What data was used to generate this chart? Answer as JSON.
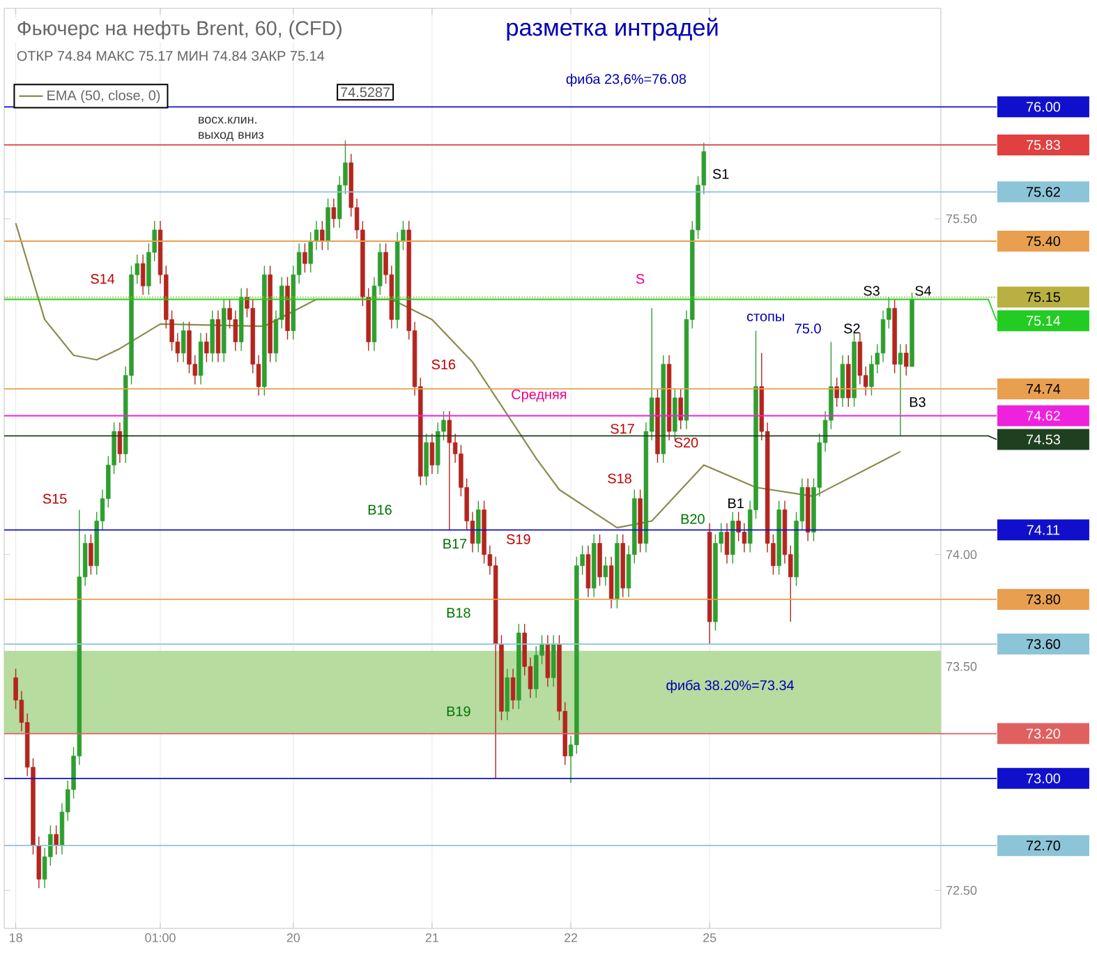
{
  "chart_data": {
    "type": "candlestick",
    "title": "Фьючерс на нефть Brent, 60, (CFD)",
    "subtitle": "ОТКР 74.84  МАКС 75.17  МИН 74.84  ЗАКР 75.14",
    "colors": [
      "#b3261e",
      "#b3261e",
      "#b3261e",
      "#b3261e",
      "#b3261e",
      "#2f9e2f",
      "#2f9e2f",
      "#b3261e",
      "#2f9e2f",
      "#2f9e2f",
      "#2f9e2f",
      "#2f9e2f",
      "#2f9e2f",
      "#b3261e",
      "#2f9e2f",
      "#2f9e2f",
      "#2f9e2f",
      "#2f9e2f",
      "#b3261e",
      "#2f9e2f",
      "#2f9e2f",
      "#2f9e2f",
      "#b3261e",
      "#2f9e2f",
      "#2f9e2f",
      "#b3261e",
      "#b3261e",
      "#b3261e",
      "#b3261e",
      "#2f9e2f",
      "#b3261e",
      "#b3261e",
      "#2f9e2f",
      "#b3261e",
      "#2f9e2f",
      "#b3261e",
      "#2f9e2f",
      "#b3261e",
      "#b3261e",
      "#2f9e2f",
      "#b3261e",
      "#b3261e",
      "#b3261e",
      "#2f9e2f",
      "#b3261e",
      "#2f9e2f",
      "#2f9e2f",
      "#b3261e",
      "#2f9e2f",
      "#2f9e2f",
      "#b3261e",
      "#2f9e2f",
      "#2f9e2f",
      "#b3261e",
      "#2f9e2f",
      "#b3261e",
      "#2f9e2f",
      "#2f9e2f",
      "#b3261e",
      "#b3261e",
      "#b3261e",
      "#b3261e",
      "#2f9e2f",
      "#2f9e2f",
      "#b3261e",
      "#b3261e",
      "#2f9e2f",
      "#2f9e2f",
      "#b3261e",
      "#b3261e",
      "#b3261e",
      "#2f9e2f",
      "#b3261e",
      "#2f9e2f",
      "#2f9e2f",
      "#b3261e",
      "#b3261e",
      "#b3261e",
      "#b3261e",
      "#b3261e",
      "#2f9e2f",
      "#b3261e",
      "#b3261e",
      "#b3261e",
      "#b3261e",
      "#2f9e2f",
      "#b3261e",
      "#2f9e2f",
      "#b3261e",
      "#b3261e",
      "#2f9e2f",
      "#2f9e2f",
      "#b3261e",
      "#2f9e2f",
      "#b3261e",
      "#b3261e",
      "#2f9e2f",
      "#2f9e2f",
      "#2f9e2f",
      "#b3261e",
      "#2f9e2f",
      "#b3261e",
      "#2f9e2f",
      "#b3261e",
      "#2f9e2f",
      "#b3261e",
      "#2f9e2f",
      "#2f9e2f",
      "#b3261e",
      "#2f9e2f",
      "#2f9e2f",
      "#b3261e",
      "#2f9e2f",
      "#b3261e",
      "#2f9e2f",
      "#b3261e",
      "#2f9e2f",
      "#2f9e2f",
      "#2f9e2f",
      "#2f9e2f",
      "#b3261e",
      "#2f9e2f",
      "#2f9e2f",
      "#b3261e",
      "#2f9e2f",
      "#b3261e",
      "#b3261e",
      "#2f9e2f",
      "#2f9e2f",
      "#b3261e",
      "#b3261e",
      "#b3261e",
      "#2f9e2f",
      "#b3261e",
      "#b3261e",
      "#2f9e2f",
      "#2f9e2f",
      "#b3261e",
      "#2f9e2f",
      "#2f9e2f",
      "#2f9e2f",
      "#2f9e2f",
      "#b3261e",
      "#2f9e2f",
      "#b3261e",
      "#2f9e2f",
      "#b3261e",
      "#b3261e",
      "#2f9e2f",
      "#2f9e2f",
      "#2f9e2f",
      "#2f9e2f",
      "#b3261e",
      "#2f9e2f",
      "#b3261e",
      "#2f9e2f"
    ],
    "categories": [
      "18",
      null,
      null,
      null,
      null,
      null,
      null,
      null,
      null,
      null,
      null,
      null,
      null,
      null,
      null,
      null,
      null,
      null,
      null,
      null,
      null,
      null,
      null,
      null,
      null,
      "01:00",
      null,
      null,
      null,
      null,
      null,
      null,
      null,
      null,
      null,
      null,
      null,
      null,
      null,
      null,
      null,
      null,
      null,
      null,
      null,
      null,
      null,
      null,
      "20",
      null,
      null,
      null,
      null,
      null,
      null,
      null,
      null,
      null,
      null,
      null,
      null,
      null,
      null,
      null,
      null,
      null,
      null,
      null,
      null,
      null,
      null,
      null,
      "21",
      null,
      null,
      null,
      null,
      null,
      null,
      null,
      null,
      null,
      null,
      null,
      null,
      null,
      null,
      null,
      null,
      null,
      null,
      null,
      null,
      null,
      null,
      null,
      "22",
      null,
      null,
      null,
      null,
      null,
      null,
      null,
      null,
      null,
      null,
      null,
      null,
      null,
      null,
      null,
      null,
      null,
      null,
      null,
      null,
      null,
      null,
      null,
      "25",
      null,
      null,
      null,
      null,
      null,
      null,
      null,
      null,
      null,
      null,
      null,
      null,
      null,
      null,
      null,
      null,
      null,
      null,
      null,
      null,
      null,
      null,
      null,
      null,
      null,
      null,
      null,
      null,
      null,
      null,
      null,
      null,
      null,
      null,
      null
    ],
    "ohlc": [
      [
        73.45,
        73.49,
        73.31,
        73.35
      ],
      [
        73.35,
        73.39,
        73.21,
        73.25
      ],
      [
        73.25,
        73.29,
        73.01,
        73.05
      ],
      [
        73.05,
        73.09,
        72.66,
        72.7
      ],
      [
        72.7,
        72.74,
        72.51,
        72.55
      ],
      [
        72.55,
        72.69,
        72.51,
        72.65
      ],
      [
        72.65,
        72.79,
        72.61,
        72.75
      ],
      [
        72.75,
        72.79,
        72.66,
        72.7
      ],
      [
        72.7,
        72.89,
        72.66,
        72.85
      ],
      [
        72.85,
        72.99,
        72.81,
        72.95
      ],
      [
        72.95,
        73.14,
        72.91,
        73.1
      ],
      [
        73.1,
        74.2,
        73.06,
        73.9
      ],
      [
        73.9,
        74.09,
        73.86,
        74.05
      ],
      [
        74.05,
        74.09,
        73.91,
        73.95
      ],
      [
        73.95,
        74.19,
        73.91,
        74.15
      ],
      [
        74.15,
        74.29,
        74.11,
        74.25
      ],
      [
        74.25,
        74.44,
        74.21,
        74.4
      ],
      [
        74.4,
        74.59,
        74.36,
        74.55
      ],
      [
        74.55,
        74.59,
        74.41,
        74.45
      ],
      [
        74.45,
        74.84,
        74.41,
        74.8
      ],
      [
        74.8,
        75.29,
        74.76,
        75.25
      ],
      [
        75.25,
        75.34,
        75.21,
        75.3
      ],
      [
        75.3,
        75.34,
        75.16,
        75.2
      ],
      [
        75.2,
        75.39,
        75.16,
        75.35
      ],
      [
        75.35,
        75.49,
        75.31,
        75.45
      ],
      [
        75.45,
        75.49,
        75.21,
        75.25
      ],
      [
        75.25,
        75.29,
        75.01,
        75.05
      ],
      [
        75.05,
        75.09,
        74.91,
        74.95
      ],
      [
        74.95,
        74.99,
        74.86,
        74.9
      ],
      [
        74.9,
        75.04,
        74.86,
        75.0
      ],
      [
        75.0,
        75.04,
        74.81,
        74.85
      ],
      [
        74.85,
        74.89,
        74.76,
        74.8
      ],
      [
        74.8,
        74.99,
        74.76,
        74.95
      ],
      [
        74.95,
        74.99,
        74.86,
        74.9
      ],
      [
        74.9,
        75.09,
        74.86,
        75.05
      ],
      [
        75.05,
        75.09,
        74.86,
        74.9
      ],
      [
        74.9,
        75.14,
        74.86,
        75.1
      ],
      [
        75.1,
        75.14,
        75.01,
        75.05
      ],
      [
        75.05,
        75.09,
        74.91,
        74.95
      ],
      [
        74.95,
        75.19,
        74.91,
        75.15
      ],
      [
        75.15,
        75.19,
        75.06,
        75.1
      ],
      [
        75.1,
        75.14,
        74.81,
        74.85
      ],
      [
        74.85,
        74.89,
        74.71,
        74.75
      ],
      [
        74.75,
        75.29,
        74.71,
        75.25
      ],
      [
        75.25,
        75.29,
        74.86,
        74.9
      ],
      [
        74.9,
        75.09,
        74.86,
        75.05
      ],
      [
        75.05,
        75.24,
        75.01,
        75.2
      ],
      [
        75.2,
        75.24,
        74.96,
        75.0
      ],
      [
        75.0,
        75.29,
        74.96,
        75.25
      ],
      [
        75.25,
        75.39,
        75.21,
        75.35
      ],
      [
        75.35,
        75.39,
        75.26,
        75.3
      ],
      [
        75.3,
        75.44,
        75.26,
        75.4
      ],
      [
        75.4,
        75.49,
        75.36,
        75.45
      ],
      [
        75.45,
        75.49,
        75.36,
        75.4
      ],
      [
        75.4,
        75.59,
        75.36,
        75.55
      ],
      [
        75.55,
        75.59,
        75.46,
        75.5
      ],
      [
        75.5,
        75.69,
        75.46,
        75.65
      ],
      [
        75.65,
        75.85,
        75.61,
        75.75
      ],
      [
        75.75,
        75.79,
        75.51,
        75.55
      ],
      [
        75.55,
        75.59,
        75.41,
        75.45
      ],
      [
        75.45,
        75.49,
        75.11,
        75.15
      ],
      [
        75.15,
        75.19,
        74.91,
        74.95
      ],
      [
        74.95,
        75.24,
        74.91,
        75.2
      ],
      [
        75.2,
        75.39,
        75.16,
        75.35
      ],
      [
        75.35,
        75.39,
        75.21,
        75.25
      ],
      [
        75.25,
        75.29,
        75.01,
        75.05
      ],
      [
        75.05,
        75.44,
        75.01,
        75.4
      ],
      [
        75.4,
        75.49,
        75.36,
        75.45
      ],
      [
        75.45,
        75.49,
        74.96,
        75.0
      ],
      [
        75.0,
        75.04,
        74.71,
        74.75
      ],
      [
        74.75,
        74.79,
        74.31,
        74.35
      ],
      [
        74.35,
        74.54,
        74.31,
        74.5
      ],
      [
        74.5,
        74.54,
        74.36,
        74.4
      ],
      [
        74.4,
        74.59,
        74.36,
        74.55
      ],
      [
        74.55,
        74.64,
        74.51,
        74.6
      ],
      [
        74.6,
        74.64,
        74.11,
        74.5
      ],
      [
        74.5,
        74.54,
        74.41,
        74.45
      ],
      [
        74.45,
        74.49,
        74.26,
        74.3
      ],
      [
        74.3,
        74.34,
        74.11,
        74.15
      ],
      [
        74.15,
        74.19,
        74.01,
        74.05
      ],
      [
        74.05,
        74.24,
        74.01,
        74.2
      ],
      [
        74.2,
        74.24,
        73.96,
        74.0
      ],
      [
        74.0,
        74.04,
        73.91,
        73.95
      ],
      [
        73.95,
        73.99,
        73.0,
        73.6
      ],
      [
        73.6,
        73.64,
        73.26,
        73.3
      ],
      [
        73.3,
        73.49,
        73.26,
        73.45
      ],
      [
        73.45,
        73.49,
        73.31,
        73.35
      ],
      [
        73.35,
        73.69,
        73.31,
        73.65
      ],
      [
        73.65,
        73.69,
        73.46,
        73.5
      ],
      [
        73.5,
        73.54,
        73.36,
        73.4
      ],
      [
        73.4,
        73.59,
        73.36,
        73.55
      ],
      [
        73.55,
        73.64,
        73.51,
        73.6
      ],
      [
        73.6,
        73.64,
        73.41,
        73.45
      ],
      [
        73.45,
        73.64,
        73.41,
        73.6
      ],
      [
        73.6,
        73.64,
        73.26,
        73.3
      ],
      [
        73.3,
        73.34,
        73.06,
        73.1
      ],
      [
        73.1,
        73.19,
        72.98,
        73.15
      ],
      [
        73.15,
        73.99,
        73.11,
        73.95
      ],
      [
        73.95,
        74.04,
        73.91,
        74.0
      ],
      [
        74.0,
        74.04,
        73.81,
        73.85
      ],
      [
        73.85,
        74.09,
        73.81,
        74.05
      ],
      [
        74.05,
        74.09,
        73.86,
        73.9
      ],
      [
        73.9,
        73.99,
        73.86,
        73.95
      ],
      [
        73.95,
        73.99,
        73.76,
        73.8
      ],
      [
        73.8,
        74.09,
        73.76,
        74.05
      ],
      [
        74.05,
        74.09,
        73.81,
        73.85
      ],
      [
        73.85,
        74.04,
        73.81,
        74.0
      ],
      [
        74.0,
        74.29,
        73.96,
        74.25
      ],
      [
        74.25,
        74.29,
        74.01,
        74.05
      ],
      [
        74.05,
        74.59,
        74.01,
        74.55
      ],
      [
        74.55,
        75.1,
        74.51,
        74.7
      ],
      [
        74.7,
        74.74,
        74.41,
        74.45
      ],
      [
        74.45,
        74.89,
        74.41,
        74.85
      ],
      [
        74.85,
        74.89,
        74.51,
        74.55
      ],
      [
        74.55,
        74.74,
        74.51,
        74.7
      ],
      [
        74.7,
        74.74,
        74.56,
        74.6
      ],
      [
        74.6,
        75.09,
        74.56,
        75.05
      ],
      [
        75.05,
        75.49,
        75.01,
        75.45
      ],
      [
        75.45,
        75.69,
        75.41,
        75.65
      ],
      [
        75.65,
        75.84,
        75.61,
        75.8
      ],
      [
        74.1,
        74.14,
        73.6,
        73.7
      ],
      [
        73.7,
        74.09,
        73.66,
        74.05
      ],
      [
        74.05,
        74.14,
        74.01,
        74.1
      ],
      [
        74.1,
        74.14,
        73.96,
        74.0
      ],
      [
        74.0,
        74.19,
        73.96,
        74.15
      ],
      [
        74.15,
        74.19,
        74.06,
        74.1
      ],
      [
        74.1,
        74.14,
        74.01,
        74.05
      ],
      [
        74.05,
        74.24,
        74.01,
        74.2
      ],
      [
        74.2,
        75.0,
        74.16,
        74.75
      ],
      [
        74.75,
        74.9,
        74.51,
        74.55
      ],
      [
        74.55,
        74.59,
        74.01,
        74.05
      ],
      [
        74.05,
        74.09,
        73.91,
        73.95
      ],
      [
        73.95,
        74.24,
        73.91,
        74.2
      ],
      [
        74.2,
        74.24,
        73.96,
        74.0
      ],
      [
        74.0,
        74.04,
        73.7,
        73.9
      ],
      [
        73.9,
        74.19,
        73.86,
        74.15
      ],
      [
        74.15,
        74.34,
        74.11,
        74.3
      ],
      [
        74.3,
        74.34,
        74.06,
        74.1
      ],
      [
        74.1,
        74.34,
        74.06,
        74.3
      ],
      [
        74.3,
        74.54,
        74.26,
        74.5
      ],
      [
        74.5,
        74.64,
        74.46,
        74.6
      ],
      [
        74.6,
        74.95,
        74.56,
        74.75
      ],
      [
        74.75,
        74.79,
        74.66,
        74.7
      ],
      [
        74.7,
        74.89,
        74.66,
        74.85
      ],
      [
        74.85,
        74.89,
        74.66,
        74.7
      ],
      [
        74.7,
        74.99,
        74.66,
        74.95
      ],
      [
        74.95,
        74.99,
        74.76,
        74.8
      ],
      [
        74.8,
        74.84,
        74.71,
        74.75
      ],
      [
        74.75,
        74.89,
        74.71,
        74.85
      ],
      [
        74.85,
        74.94,
        74.81,
        74.9
      ],
      [
        74.9,
        75.09,
        74.86,
        75.05
      ],
      [
        75.05,
        75.15,
        75.01,
        75.1
      ],
      [
        75.1,
        75.14,
        74.81,
        74.85
      ],
      [
        74.85,
        74.94,
        74.53,
        74.9
      ],
      [
        74.9,
        74.94,
        74.8,
        74.84
      ],
      [
        74.84,
        75.17,
        74.84,
        75.14
      ]
    ],
    "series": [
      {
        "type": "line",
        "name": "EMA (50, close, 0)",
        "color": "#8c8a4e",
        "values": [
          75.48,
          null,
          null,
          null,
          null,
          75.05,
          null,
          null,
          null,
          null,
          74.89,
          null,
          null,
          null,
          74.87,
          null,
          null,
          null,
          74.92,
          null,
          null,
          null,
          null,
          null,
          null,
          75.03,
          null,
          null,
          null,
          null,
          null,
          null,
          null,
          null,
          null,
          null,
          null,
          null,
          null,
          null,
          null,
          null,
          null,
          75.02,
          null,
          null,
          null,
          null,
          null,
          null,
          null,
          null,
          75.14,
          null,
          null,
          null,
          null,
          null,
          null,
          null,
          null,
          null,
          null,
          null,
          null,
          75.14,
          null,
          null,
          null,
          null,
          null,
          null,
          75.05,
          null,
          null,
          null,
          null,
          null,
          null,
          74.86,
          null,
          null,
          null,
          null,
          null,
          null,
          null,
          null,
          null,
          null,
          74.43,
          null,
          null,
          null,
          74.29,
          null,
          null,
          null,
          null,
          null,
          null,
          null,
          null,
          null,
          74.12,
          null,
          null,
          null,
          null,
          null,
          74.15,
          null,
          null,
          null,
          null,
          null,
          null,
          null,
          null,
          74.4,
          null,
          null,
          null,
          null,
          null,
          null,
          null,
          null,
          74.3,
          null,
          null,
          null,
          null,
          null,
          null,
          null,
          null,
          null,
          74.26,
          null,
          null,
          null,
          null,
          null,
          null,
          null,
          null,
          null,
          null,
          null,
          null,
          null,
          null,
          74.46,
          null,
          null
        ]
      }
    ],
    "legend": "top left",
    "ylim": [
      72.33,
      76.44
    ],
    "yticks": [
      {
        "value": 75.5,
        "label": "75.50"
      },
      {
        "value": 74.0,
        "label": "74.00"
      },
      {
        "value": 73.5,
        "label": "73.50"
      },
      {
        "value": 72.5,
        "label": "72.50"
      }
    ],
    "grid": "x",
    "ref_lines": [
      {
        "axis": "y",
        "value": 76.0,
        "label": "76.00",
        "color": "#1010cc"
      },
      {
        "axis": "y",
        "value": 75.83,
        "label": "75.83",
        "color": "#e04040"
      },
      {
        "axis": "y",
        "value": 75.62,
        "label": "75.62",
        "color": "#8cc4d8"
      },
      {
        "axis": "y",
        "value": 75.4,
        "label": "75.40",
        "color": "#e8a050"
      },
      {
        "axis": "y",
        "value": 75.15,
        "label": "75.15",
        "color": "#b8b040",
        "line_style": "dotted"
      },
      {
        "axis": "y",
        "value": 75.14,
        "label": "75.14",
        "color": "#22cc22"
      },
      {
        "axis": "y",
        "value": 74.74,
        "label": "74.74",
        "color": "#e8a050"
      },
      {
        "axis": "y",
        "value": 74.62,
        "label": "74.62",
        "color": "#ee22dd"
      },
      {
        "axis": "y",
        "value": 74.53,
        "label": "74.53",
        "color": "#1e4020"
      },
      {
        "axis": "y",
        "value": 74.11,
        "label": "74.11",
        "color": "#1010cc"
      },
      {
        "axis": "y",
        "value": 73.8,
        "label": "73.80",
        "color": "#e8a050"
      },
      {
        "axis": "y",
        "value": 73.6,
        "label": "73.60",
        "color": "#8cc4d8"
      },
      {
        "axis": "y",
        "value": 73.2,
        "label": "73.20",
        "color": "#e06060"
      },
      {
        "axis": "y",
        "value": 73.0,
        "label": "73.00",
        "color": "#1010cc"
      },
      {
        "axis": "y",
        "value": 72.7,
        "label": "72.70",
        "color": "#8cc4d8"
      }
    ],
    "bands": [
      {
        "axis": "y",
        "from": 73.2,
        "to": 73.57,
        "color": "#b6dca0"
      }
    ],
    "annotations": [
      "разметка интрадей",
      "74.5287",
      "восх.клин. выход вниз",
      "S14",
      "S15",
      "S16",
      "B16",
      "B17",
      "B18",
      "B19",
      "S19",
      "S18",
      "S17",
      "S20",
      "B20",
      "S",
      "S1",
      "B1",
      "стопы",
      "75.0",
      "S2",
      "S3",
      "S4",
      "B3",
      "Средняя",
      "фиба 38.20%=73.34",
      "фиба 23,6%=76.08"
    ]
  }
}
